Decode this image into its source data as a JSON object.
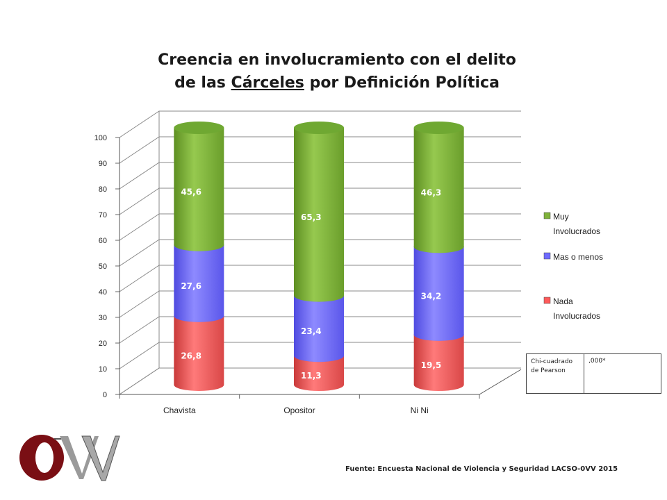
{
  "title_line1": "Creencia en involucramiento con el delito",
  "title_line2_pre": "de las ",
  "title_line2_underlined": "Cárceles",
  "title_line2_post": " por Definición Política",
  "source": "Fuente: Encuesta Nacional de Violencia y Seguridad LACSO-0VV 2015",
  "stats": {
    "label": "Chi-cuadrado de Pearson",
    "value": ",000*"
  },
  "logo": {
    "text": "OVV",
    "colors": {
      "O": "#7a0f14",
      "VV": "#9a9a9a"
    }
  },
  "chart_data": {
    "type": "bar",
    "stacked": true,
    "style": "3d-cylinder",
    "categories": [
      "Chavista",
      "Opositor",
      "Ni Ni"
    ],
    "series": [
      {
        "name": "Nada Involucrados",
        "values": [
          26.8,
          11.3,
          19.5
        ],
        "color": "#ff5a5a"
      },
      {
        "name": "Mas o menos",
        "values": [
          27.6,
          23.4,
          34.2
        ],
        "color": "#6f6bff"
      },
      {
        "name": "Muy Involucrados",
        "values": [
          45.6,
          65.3,
          46.3
        ],
        "color": "#7fb23a"
      }
    ],
    "data_labels": [
      [
        "26,8",
        "11,3",
        "19,5"
      ],
      [
        "27,6",
        "23,4",
        "34,2"
      ],
      [
        "45,6",
        "65,3",
        "46,3"
      ]
    ],
    "yticks": [
      "0",
      "10",
      "20",
      "30",
      "40",
      "50",
      "60",
      "70",
      "80",
      "90",
      "100"
    ],
    "ylim": [
      0,
      100
    ],
    "grid": true,
    "legend_position": "right"
  }
}
